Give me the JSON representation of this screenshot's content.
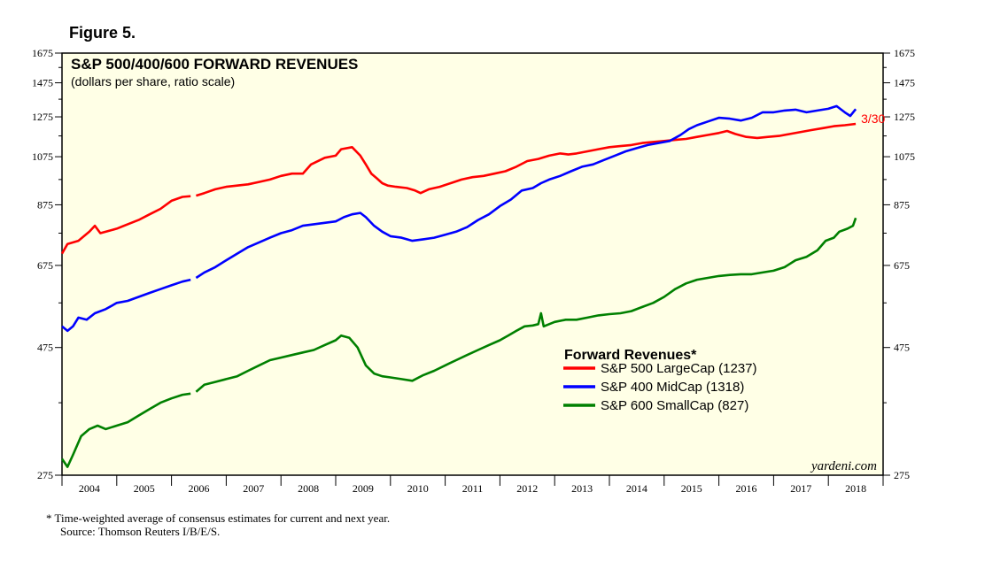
{
  "figure_label": "Figure 5.",
  "footnote": {
    "line1": "*  Time-weighted average of consensus estimates for current and next year.",
    "line2": "Source: Thomson Reuters I/B/E/S."
  },
  "watermark": "yardeni.com",
  "colors": {
    "background": "#ffffe6",
    "sp500": "#ff0000",
    "sp400": "#0000ff",
    "sp600": "#008000"
  },
  "chart_data": {
    "type": "line",
    "title": "S&P 500/400/600 FORWARD REVENUES",
    "subtitle": "(dollars per share, ratio scale)",
    "y_scale": "log",
    "ylim": [
      275,
      1675
    ],
    "y_ticks": [
      275,
      475,
      675,
      875,
      1075,
      1275,
      1475,
      1675
    ],
    "y_tick_labels": [
      "275",
      "475",
      "675",
      "875",
      "1075",
      "1275",
      "1475",
      "1675"
    ],
    "x_range": [
      2004,
      2019
    ],
    "x_tick_labels": [
      "2004",
      "2005",
      "2006",
      "2007",
      "2008",
      "2009",
      "2010",
      "2011",
      "2012",
      "2013",
      "2014",
      "2015",
      "2016",
      "2017",
      "2018"
    ],
    "grid": false,
    "legend": {
      "title": "Forward Revenues*",
      "placement": "right-center"
    },
    "annotation": {
      "text": "3/30",
      "x": 2017.25
    },
    "series": [
      {
        "name": "S&P 500 LargeCap (1237)",
        "color": "#ff0000",
        "points": [
          [
            2004.0,
            710
          ],
          [
            2004.1,
            740
          ],
          [
            2004.3,
            750
          ],
          [
            2004.5,
            780
          ],
          [
            2004.6,
            800
          ],
          [
            2004.7,
            775
          ],
          [
            2004.9,
            785
          ],
          [
            2005.0,
            790
          ],
          [
            2005.2,
            805
          ],
          [
            2005.4,
            820
          ],
          [
            2005.6,
            840
          ],
          [
            2005.8,
            860
          ],
          [
            2006.0,
            890
          ],
          [
            2006.2,
            905
          ],
          [
            2006.35,
            908
          ],
          [
            null,
            null
          ],
          [
            2006.45,
            910
          ],
          [
            2006.6,
            920
          ],
          [
            2006.8,
            935
          ],
          [
            2007.0,
            945
          ],
          [
            2007.2,
            950
          ],
          [
            2007.4,
            955
          ],
          [
            2007.6,
            965
          ],
          [
            2007.8,
            975
          ],
          [
            2008.0,
            990
          ],
          [
            2008.2,
            1000
          ],
          [
            2008.4,
            1000
          ],
          [
            2008.55,
            1040
          ],
          [
            2008.8,
            1070
          ],
          [
            2009.0,
            1080
          ],
          [
            2009.1,
            1110
          ],
          [
            2009.3,
            1120
          ],
          [
            2009.45,
            1080
          ],
          [
            2009.55,
            1040
          ],
          [
            2009.65,
            1000
          ],
          [
            2009.75,
            980
          ],
          [
            2009.85,
            960
          ],
          [
            2009.95,
            950
          ],
          [
            2010.1,
            945
          ],
          [
            2010.3,
            940
          ],
          [
            2010.45,
            930
          ],
          [
            2010.55,
            920
          ],
          [
            2010.7,
            935
          ],
          [
            2010.9,
            945
          ],
          [
            2011.1,
            960
          ],
          [
            2011.3,
            975
          ],
          [
            2011.5,
            985
          ],
          [
            2011.7,
            990
          ],
          [
            2011.9,
            1000
          ],
          [
            2012.1,
            1010
          ],
          [
            2012.3,
            1030
          ],
          [
            2012.5,
            1055
          ],
          [
            2012.7,
            1065
          ],
          [
            2012.9,
            1080
          ],
          [
            2013.1,
            1090
          ],
          [
            2013.25,
            1085
          ],
          [
            2013.4,
            1090
          ],
          [
            2013.6,
            1100
          ],
          [
            2013.8,
            1110
          ],
          [
            2014.0,
            1120
          ],
          [
            2014.2,
            1125
          ],
          [
            2014.4,
            1130
          ],
          [
            2014.6,
            1140
          ],
          [
            2014.8,
            1145
          ],
          [
            2015.0,
            1150
          ],
          [
            2015.2,
            1155
          ],
          [
            2015.4,
            1160
          ],
          [
            2015.6,
            1170
          ],
          [
            2015.8,
            1180
          ],
          [
            2016.0,
            1190
          ],
          [
            2016.15,
            1200
          ],
          [
            2016.3,
            1185
          ],
          [
            2016.5,
            1170
          ],
          [
            2016.7,
            1165
          ],
          [
            2016.9,
            1170
          ],
          [
            2017.1,
            1175
          ],
          [
            2017.3,
            1185
          ],
          [
            2017.5,
            1195
          ],
          [
            2017.7,
            1205
          ],
          [
            2017.9,
            1215
          ],
          [
            2018.1,
            1225
          ],
          [
            2018.3,
            1230
          ],
          [
            2018.5,
            1237
          ]
        ]
      },
      {
        "name": "S&P 400 MidCap (1318)",
        "color": "#0000ff",
        "points": [
          [
            2004.0,
            520
          ],
          [
            2004.1,
            510
          ],
          [
            2004.2,
            520
          ],
          [
            2004.3,
            540
          ],
          [
            2004.45,
            535
          ],
          [
            2004.6,
            550
          ],
          [
            2004.8,
            560
          ],
          [
            2005.0,
            575
          ],
          [
            2005.2,
            580
          ],
          [
            2005.4,
            590
          ],
          [
            2005.6,
            600
          ],
          [
            2005.8,
            610
          ],
          [
            2006.0,
            620
          ],
          [
            2006.2,
            630
          ],
          [
            2006.35,
            635
          ],
          [
            null,
            null
          ],
          [
            2006.45,
            640
          ],
          [
            2006.6,
            655
          ],
          [
            2006.8,
            670
          ],
          [
            2007.0,
            690
          ],
          [
            2007.2,
            710
          ],
          [
            2007.4,
            730
          ],
          [
            2007.6,
            745
          ],
          [
            2007.8,
            760
          ],
          [
            2008.0,
            775
          ],
          [
            2008.2,
            785
          ],
          [
            2008.4,
            800
          ],
          [
            2008.6,
            805
          ],
          [
            2008.8,
            810
          ],
          [
            2009.0,
            815
          ],
          [
            2009.15,
            830
          ],
          [
            2009.3,
            840
          ],
          [
            2009.45,
            845
          ],
          [
            2009.55,
            830
          ],
          [
            2009.7,
            800
          ],
          [
            2009.85,
            780
          ],
          [
            2010.0,
            765
          ],
          [
            2010.2,
            760
          ],
          [
            2010.4,
            750
          ],
          [
            2010.6,
            755
          ],
          [
            2010.8,
            760
          ],
          [
            2011.0,
            770
          ],
          [
            2011.2,
            780
          ],
          [
            2011.4,
            795
          ],
          [
            2011.6,
            820
          ],
          [
            2011.8,
            840
          ],
          [
            2012.0,
            870
          ],
          [
            2012.2,
            895
          ],
          [
            2012.4,
            930
          ],
          [
            2012.6,
            940
          ],
          [
            2012.75,
            960
          ],
          [
            2012.9,
            975
          ],
          [
            2013.1,
            990
          ],
          [
            2013.3,
            1010
          ],
          [
            2013.5,
            1030
          ],
          [
            2013.7,
            1040
          ],
          [
            2013.9,
            1060
          ],
          [
            2014.1,
            1080
          ],
          [
            2014.3,
            1100
          ],
          [
            2014.5,
            1115
          ],
          [
            2014.7,
            1130
          ],
          [
            2014.9,
            1140
          ],
          [
            2015.1,
            1150
          ],
          [
            2015.3,
            1180
          ],
          [
            2015.45,
            1210
          ],
          [
            2015.6,
            1230
          ],
          [
            2015.8,
            1250
          ],
          [
            2016.0,
            1270
          ],
          [
            2016.2,
            1265
          ],
          [
            2016.4,
            1255
          ],
          [
            2016.6,
            1270
          ],
          [
            2016.8,
            1300
          ],
          [
            2017.0,
            1300
          ],
          [
            2017.2,
            1310
          ],
          [
            2017.4,
            1315
          ],
          [
            2017.6,
            1300
          ],
          [
            2017.8,
            1310
          ],
          [
            2018.0,
            1320
          ],
          [
            2018.15,
            1335
          ],
          [
            2018.3,
            1300
          ],
          [
            2018.4,
            1280
          ],
          [
            2018.5,
            1318
          ]
        ]
      },
      {
        "name": "S&P 600 SmallCap (827)",
        "color": "#008000",
        "points": [
          [
            2004.0,
            295
          ],
          [
            2004.1,
            285
          ],
          [
            2004.2,
            300
          ],
          [
            2004.35,
            325
          ],
          [
            2004.5,
            335
          ],
          [
            2004.65,
            340
          ],
          [
            2004.8,
            335
          ],
          [
            2005.0,
            340
          ],
          [
            2005.2,
            345
          ],
          [
            2005.4,
            355
          ],
          [
            2005.6,
            365
          ],
          [
            2005.8,
            375
          ],
          [
            2006.0,
            382
          ],
          [
            2006.2,
            388
          ],
          [
            2006.35,
            390
          ],
          [
            null,
            null
          ],
          [
            2006.45,
            393
          ],
          [
            2006.6,
            405
          ],
          [
            2006.8,
            410
          ],
          [
            2007.0,
            415
          ],
          [
            2007.2,
            420
          ],
          [
            2007.4,
            430
          ],
          [
            2007.6,
            440
          ],
          [
            2007.8,
            450
          ],
          [
            2008.0,
            455
          ],
          [
            2008.2,
            460
          ],
          [
            2008.4,
            465
          ],
          [
            2008.6,
            470
          ],
          [
            2008.8,
            480
          ],
          [
            2009.0,
            490
          ],
          [
            2009.1,
            500
          ],
          [
            2009.25,
            495
          ],
          [
            2009.4,
            475
          ],
          [
            2009.55,
            440
          ],
          [
            2009.7,
            425
          ],
          [
            2009.85,
            420
          ],
          [
            2010.0,
            418
          ],
          [
            2010.2,
            415
          ],
          [
            2010.4,
            412
          ],
          [
            2010.6,
            422
          ],
          [
            2010.8,
            430
          ],
          [
            2011.0,
            440
          ],
          [
            2011.2,
            450
          ],
          [
            2011.4,
            460
          ],
          [
            2011.6,
            470
          ],
          [
            2011.8,
            480
          ],
          [
            2012.0,
            490
          ],
          [
            2012.15,
            500
          ],
          [
            2012.3,
            510
          ],
          [
            2012.45,
            520
          ],
          [
            2012.6,
            522
          ],
          [
            2012.7,
            525
          ],
          [
            2012.75,
            550
          ],
          [
            2012.8,
            520
          ],
          [
            2012.9,
            525
          ],
          [
            2013.0,
            530
          ],
          [
            2013.2,
            535
          ],
          [
            2013.4,
            535
          ],
          [
            2013.6,
            540
          ],
          [
            2013.8,
            545
          ],
          [
            2014.0,
            548
          ],
          [
            2014.2,
            550
          ],
          [
            2014.4,
            555
          ],
          [
            2014.6,
            565
          ],
          [
            2014.8,
            575
          ],
          [
            2015.0,
            590
          ],
          [
            2015.2,
            610
          ],
          [
            2015.4,
            625
          ],
          [
            2015.6,
            635
          ],
          [
            2015.8,
            640
          ],
          [
            2016.0,
            645
          ],
          [
            2016.2,
            648
          ],
          [
            2016.4,
            650
          ],
          [
            2016.6,
            650
          ],
          [
            2016.8,
            655
          ],
          [
            2017.0,
            660
          ],
          [
            2017.2,
            670
          ],
          [
            2017.4,
            690
          ],
          [
            2017.6,
            700
          ],
          [
            2017.8,
            720
          ],
          [
            2017.95,
            750
          ],
          [
            2018.1,
            760
          ],
          [
            2018.2,
            780
          ],
          [
            2018.35,
            790
          ],
          [
            2018.45,
            800
          ],
          [
            2018.5,
            827
          ]
        ]
      }
    ]
  }
}
